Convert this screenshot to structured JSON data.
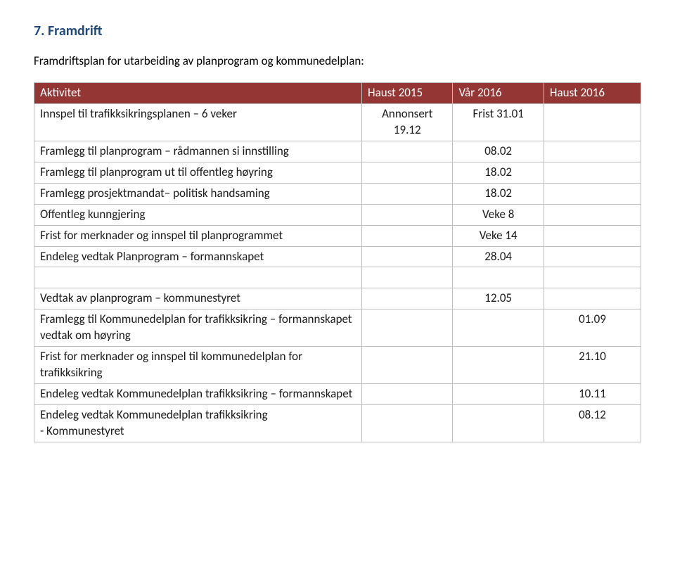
{
  "heading": "7. Framdrift",
  "intro": "Framdriftsplan for utarbeiding av planprogram og kommunedelplan:",
  "table": {
    "columns": [
      "Aktivitet",
      "Haust 2015",
      "Vår 2016",
      "Haust 2016"
    ],
    "header_bg": "#943634",
    "header_text_color": "#ffffff",
    "border_color": "#bfbfbf",
    "rows": [
      {
        "activity": "Innspel til trafikksikringsplanen – 6 veker",
        "c2": "Annonsert 19.12",
        "c3": "Frist 31.01",
        "c4": ""
      },
      {
        "activity": "Framlegg til planprogram – rådmannen si innstilling",
        "c2": "",
        "c3": "08.02",
        "c4": ""
      },
      {
        "activity": "Framlegg til planprogram ut til offentleg høyring",
        "c2": "",
        "c3": "18.02",
        "c4": ""
      },
      {
        "activity": "Framlegg prosjektmandat– politisk handsaming",
        "c2": "",
        "c3": "18.02",
        "c4": ""
      },
      {
        "activity": "Offentleg kunngjering",
        "c2": "",
        "c3": "Veke 8",
        "c4": ""
      },
      {
        "activity": "Frist for merknader og innspel til planprogrammet",
        "c2": "",
        "c3": "Veke 14",
        "c4": ""
      },
      {
        "activity": "Endeleg vedtak Planprogram – formannskapet",
        "c2": "",
        "c3": "28.04",
        "c4": ""
      },
      {
        "spacer": true
      },
      {
        "activity": "Vedtak av planprogram – kommunestyret",
        "c2": "",
        "c3": "12.05",
        "c4": ""
      },
      {
        "activity": "Framlegg til Kommunedelplan for trafikksikring – formannskapet vedtak om høyring",
        "c2": "",
        "c3": "",
        "c4": "01.09"
      },
      {
        "activity": "Frist for merknader og innspel til kommunedelplan for trafikksikring",
        "c2": "",
        "c3": "",
        "c4": "21.10"
      },
      {
        "activity": "Endeleg vedtak Kommunedelplan trafikksikring – formannskapet",
        "c2": "",
        "c3": "",
        "c4": "10.11"
      },
      {
        "activity": "Endeleg vedtak Kommunedelplan trafikksikring\n-    Kommunestyret",
        "c2": "",
        "c3": "",
        "c4": "08.12"
      }
    ]
  }
}
